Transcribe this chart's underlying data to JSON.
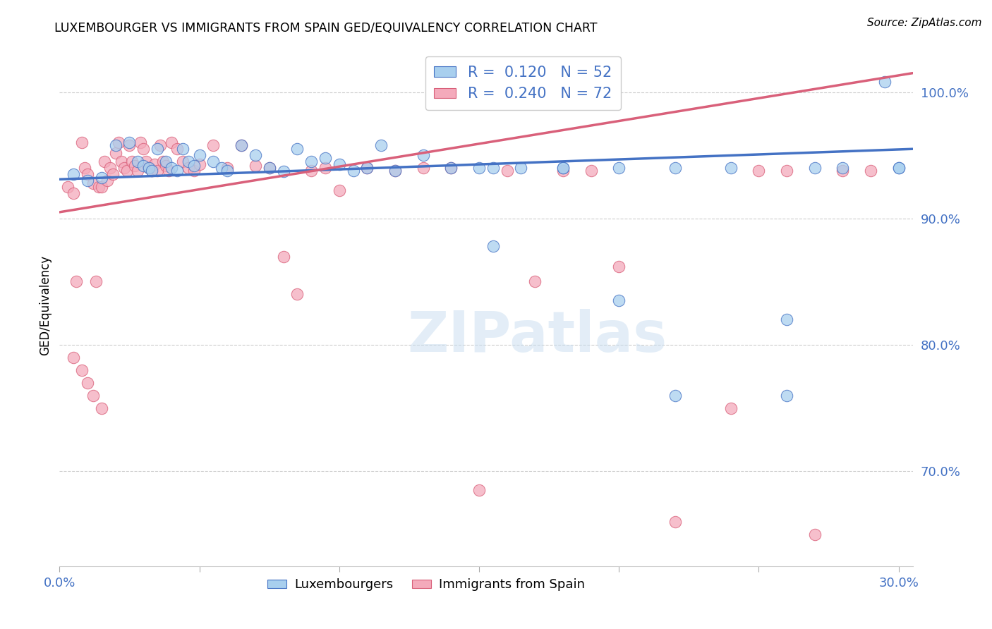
{
  "title": "LUXEMBOURGER VS IMMIGRANTS FROM SPAIN GED/EQUIVALENCY CORRELATION CHART",
  "source": "Source: ZipAtlas.com",
  "ylabel": "GED/Equivalency",
  "xlim": [
    0.0,
    0.305
  ],
  "ylim": [
    0.625,
    1.038
  ],
  "ytick_positions": [
    0.7,
    0.8,
    0.9,
    1.0
  ],
  "ytick_labels": [
    "70.0%",
    "80.0%",
    "90.0%",
    "100.0%"
  ],
  "blue_fill": "#A8CFEE",
  "blue_edge": "#4472C4",
  "pink_fill": "#F4AABB",
  "pink_edge": "#D9607A",
  "blue_line": "#4472C4",
  "pink_line": "#D9607A",
  "legend_blue_R": "0.120",
  "legend_blue_N": "52",
  "legend_pink_R": "0.240",
  "legend_pink_N": "72",
  "legend_label_blue": "Luxembourgers",
  "legend_label_pink": "Immigrants from Spain",
  "watermark": "ZIPatlas",
  "blue_trend_x": [
    0.0,
    0.305
  ],
  "blue_trend_y": [
    0.931,
    0.955
  ],
  "pink_trend_x": [
    0.0,
    0.305
  ],
  "pink_trend_y": [
    0.905,
    1.015
  ],
  "blue_x": [
    0.005,
    0.01,
    0.015,
    0.02,
    0.025,
    0.028,
    0.03,
    0.032,
    0.033,
    0.035,
    0.038,
    0.04,
    0.042,
    0.044,
    0.046,
    0.048,
    0.05,
    0.055,
    0.058,
    0.06,
    0.065,
    0.07,
    0.075,
    0.08,
    0.085,
    0.09,
    0.095,
    0.1,
    0.105,
    0.11,
    0.115,
    0.12,
    0.13,
    0.14,
    0.155,
    0.165,
    0.18,
    0.2,
    0.22,
    0.24,
    0.26,
    0.28,
    0.295,
    0.3,
    0.155,
    0.26,
    0.3,
    0.15,
    0.18,
    0.2,
    0.22,
    0.27
  ],
  "blue_y": [
    0.935,
    0.93,
    0.932,
    0.958,
    0.96,
    0.945,
    0.942,
    0.94,
    0.938,
    0.955,
    0.945,
    0.94,
    0.938,
    0.955,
    0.945,
    0.942,
    0.95,
    0.945,
    0.94,
    0.938,
    0.958,
    0.95,
    0.94,
    0.937,
    0.955,
    0.945,
    0.948,
    0.943,
    0.938,
    0.94,
    0.958,
    0.938,
    0.95,
    0.94,
    0.878,
    0.94,
    0.94,
    0.835,
    0.76,
    0.94,
    0.76,
    0.94,
    1.008,
    0.94,
    0.94,
    0.82,
    0.94,
    0.94,
    0.94,
    0.94,
    0.94,
    0.94
  ],
  "pink_x": [
    0.003,
    0.005,
    0.006,
    0.008,
    0.009,
    0.01,
    0.012,
    0.013,
    0.014,
    0.015,
    0.016,
    0.017,
    0.018,
    0.019,
    0.02,
    0.021,
    0.022,
    0.023,
    0.024,
    0.025,
    0.026,
    0.027,
    0.028,
    0.029,
    0.03,
    0.031,
    0.032,
    0.033,
    0.034,
    0.035,
    0.036,
    0.037,
    0.038,
    0.039,
    0.04,
    0.042,
    0.044,
    0.046,
    0.048,
    0.05,
    0.055,
    0.06,
    0.065,
    0.07,
    0.075,
    0.08,
    0.085,
    0.09,
    0.095,
    0.1,
    0.11,
    0.12,
    0.13,
    0.14,
    0.15,
    0.16,
    0.17,
    0.18,
    0.19,
    0.2,
    0.22,
    0.24,
    0.25,
    0.26,
    0.27,
    0.28,
    0.29,
    0.005,
    0.008,
    0.01,
    0.012,
    0.015
  ],
  "pink_y": [
    0.925,
    0.92,
    0.85,
    0.96,
    0.94,
    0.935,
    0.928,
    0.85,
    0.925,
    0.925,
    0.945,
    0.93,
    0.94,
    0.935,
    0.952,
    0.96,
    0.945,
    0.94,
    0.938,
    0.958,
    0.945,
    0.942,
    0.938,
    0.96,
    0.955,
    0.945,
    0.94,
    0.938,
    0.943,
    0.938,
    0.958,
    0.945,
    0.942,
    0.938,
    0.96,
    0.955,
    0.945,
    0.94,
    0.938,
    0.943,
    0.958,
    0.94,
    0.958,
    0.942,
    0.94,
    0.87,
    0.84,
    0.938,
    0.94,
    0.922,
    0.94,
    0.938,
    0.94,
    0.94,
    0.685,
    0.938,
    0.85,
    0.938,
    0.938,
    0.862,
    0.66,
    0.75,
    0.938,
    0.938,
    0.65,
    0.938,
    0.938,
    0.79,
    0.78,
    0.77,
    0.76,
    0.75
  ]
}
